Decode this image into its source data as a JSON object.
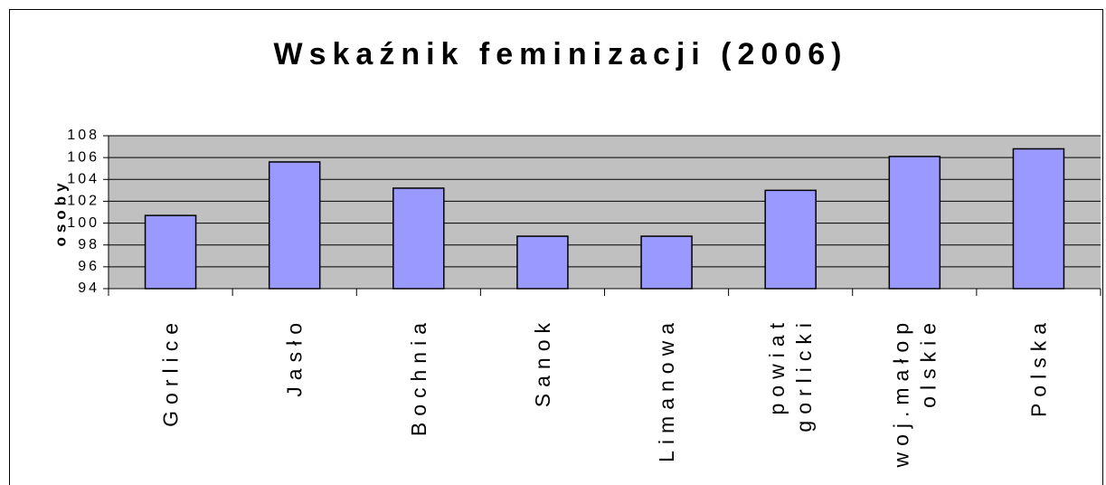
{
  "chart_data": {
    "type": "bar",
    "title": "Wskaźnik feminizacji (2006)",
    "y_label": "osoby",
    "categories": [
      "Gorlice",
      "Jasło",
      "Bochnia",
      "Sanok",
      "Limanowa",
      "powiat gorlicki",
      "woj.małop olskie",
      "Polska"
    ],
    "values": [
      100.7,
      105.6,
      103.2,
      98.8,
      98.8,
      103.0,
      106.1,
      106.8
    ],
    "color": "#9999ff",
    "plot_background": "#c0c0c0",
    "ylim": [
      94,
      108
    ],
    "yticks": [
      94,
      96,
      98,
      100,
      102,
      104,
      106,
      108
    ],
    "grid": true
  }
}
